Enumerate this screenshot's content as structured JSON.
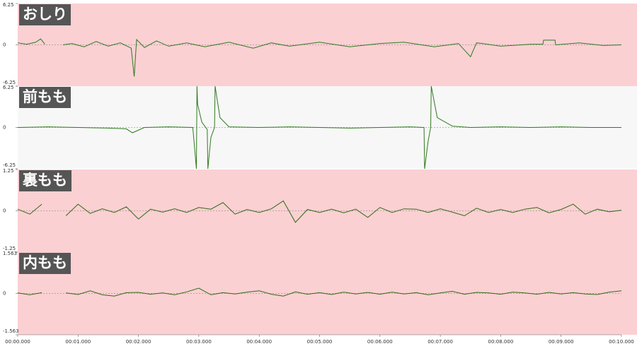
{
  "chart_data": [
    {
      "type": "line",
      "title": "おしり",
      "background": "#fbd0d3",
      "xlim": [
        0,
        10
      ],
      "ylim": [
        -6.25,
        6.25
      ],
      "yticks": [
        -6.25,
        0,
        6.25
      ],
      "x": [
        0,
        0.15,
        0.3,
        0.38,
        0.45,
        0.6,
        0.75,
        0.9,
        1.1,
        1.3,
        1.5,
        1.7,
        1.88,
        1.93,
        1.97,
        2.1,
        2.3,
        2.5,
        2.8,
        3.1,
        3.5,
        3.9,
        4.2,
        4.5,
        5.0,
        5.5,
        6.0,
        6.4,
        6.9,
        7.3,
        7.5,
        7.6,
        7.7,
        8.0,
        8.5,
        8.7,
        8.71,
        8.9,
        8.91,
        9.3,
        9.7,
        10
      ],
      "series": [
        {
          "color": "#2f7a1f",
          "values": [
            0.3,
            0.1,
            0.4,
            0.9,
            0.1,
            null,
            0,
            0.2,
            -0.3,
            0.5,
            -0.2,
            0.3,
            -0.5,
            -4.8,
            0.8,
            -0.4,
            0.6,
            -0.2,
            0.3,
            -0.3,
            0.4,
            -0.5,
            0.3,
            -0.2,
            0.4,
            -0.3,
            0.2,
            0.4,
            -0.3,
            0.2,
            -1.8,
            0.3,
            0.2,
            -0.2,
            0.1,
            0.1,
            0.7,
            0.7,
            0,
            0.3,
            -0.1,
            0
          ]
        }
      ]
    },
    {
      "type": "line",
      "title": "前もも",
      "background": "#f7f7f7",
      "xlim": [
        0,
        10
      ],
      "ylim": [
        -6.25,
        6.25
      ],
      "yticks": [
        -6.25,
        0,
        6.25
      ],
      "x": [
        0,
        0.5,
        1.0,
        1.5,
        1.8,
        1.9,
        2.1,
        2.5,
        2.9,
        2.96,
        2.97,
        2.98,
        3.05,
        3.14,
        3.15,
        3.2,
        3.26,
        3.27,
        3.35,
        3.5,
        4,
        4.5,
        5,
        5.5,
        6,
        6.5,
        6.73,
        6.74,
        6.8,
        6.84,
        6.85,
        6.95,
        7.2,
        7.5,
        8,
        8.5,
        9,
        9.5,
        10
      ],
      "series": [
        {
          "color": "#2f7a1f",
          "values": [
            0,
            0.1,
            0,
            -0.1,
            -0.2,
            -0.8,
            0,
            0.1,
            0,
            -6.25,
            6.25,
            3.5,
            0.8,
            -0.3,
            -6.25,
            -1.5,
            0,
            6.25,
            1.5,
            0.1,
            0,
            0.1,
            0,
            -0.1,
            0,
            0.1,
            0,
            -6.25,
            -2,
            0,
            6.25,
            1.5,
            0.2,
            0,
            0.1,
            0,
            0.1,
            0,
            0
          ]
        }
      ]
    },
    {
      "type": "line",
      "title": "裏もも",
      "background": "#fbd0d3",
      "xlim": [
        0,
        10
      ],
      "ylim": [
        -1.25,
        1.25
      ],
      "yticks": [
        -1.25,
        0,
        1.25
      ],
      "x": [
        0,
        0.2,
        0.4,
        0.6,
        0.8,
        1,
        1.2,
        1.4,
        1.6,
        1.8,
        2,
        2.2,
        2.4,
        2.6,
        2.8,
        3,
        3.2,
        3.4,
        3.6,
        3.8,
        4,
        4.2,
        4.4,
        4.6,
        4.8,
        5,
        5.2,
        5.4,
        5.6,
        5.8,
        6,
        6.2,
        6.4,
        6.6,
        6.8,
        7,
        7.2,
        7.4,
        7.6,
        7.8,
        8,
        8.2,
        8.4,
        8.6,
        8.8,
        9,
        9.2,
        9.4,
        9.6,
        9.8,
        10
      ],
      "series": [
        {
          "color": "#2f6a10",
          "values": [
            0.05,
            -0.1,
            0.2,
            null,
            -0.15,
            0.2,
            -0.08,
            0.06,
            -0.05,
            0.12,
            -0.25,
            0.05,
            -0.04,
            0.06,
            -0.05,
            0.1,
            0.05,
            0.25,
            -0.1,
            0.04,
            -0.05,
            0.06,
            0.3,
            -0.35,
            0.04,
            -0.05,
            0.05,
            -0.06,
            0.05,
            -0.2,
            0.1,
            -0.05,
            0.06,
            0.05,
            -0.05,
            0.06,
            -0.04,
            -0.15,
            0.08,
            -0.05,
            0.04,
            -0.05,
            0.05,
            0.1,
            -0.06,
            0.04,
            0.2,
            -0.1,
            0.05,
            -0.03,
            0.02
          ]
        }
      ]
    },
    {
      "type": "line",
      "title": "内もも",
      "background": "#fbd0d3",
      "xlim": [
        0,
        10
      ],
      "ylim": [
        -1.563,
        1.563
      ],
      "yticks": [
        -1.563,
        0,
        1.563
      ],
      "xticks": [
        {
          "value": 0,
          "label": "00:00.000"
        },
        {
          "value": 1,
          "label": "00:01.000"
        },
        {
          "value": 2,
          "label": "00:02.000"
        },
        {
          "value": 3,
          "label": "00:03.000"
        },
        {
          "value": 4,
          "label": "00:04.000"
        },
        {
          "value": 5,
          "label": "00:05.000"
        },
        {
          "value": 6,
          "label": "00:06.000"
        },
        {
          "value": 7,
          "label": "00:07.000"
        },
        {
          "value": 8,
          "label": "00:08.000"
        },
        {
          "value": 9,
          "label": "00:09.000"
        },
        {
          "value": 10,
          "label": "00:10.000"
        }
      ],
      "x": [
        0,
        0.2,
        0.4,
        0.6,
        0.8,
        1,
        1.2,
        1.4,
        1.6,
        1.8,
        2,
        2.2,
        2.4,
        2.6,
        2.8,
        3,
        3.2,
        3.4,
        3.6,
        3.8,
        4,
        4.2,
        4.4,
        4.6,
        4.8,
        5,
        5.2,
        5.4,
        5.6,
        5.8,
        6,
        6.2,
        6.4,
        6.6,
        6.8,
        7,
        7.2,
        7.4,
        7.6,
        7.8,
        8,
        8.2,
        8.4,
        8.6,
        8.8,
        9,
        9.2,
        9.4,
        9.6,
        9.8,
        10
      ],
      "series": [
        {
          "color": "#2f6a10",
          "values": [
            0.02,
            -0.05,
            0.03,
            null,
            0.02,
            -0.04,
            0.1,
            -0.05,
            -0.1,
            0.03,
            0.04,
            -0.03,
            0.02,
            -0.05,
            0.06,
            0.2,
            -0.05,
            0.03,
            -0.02,
            0.05,
            0.1,
            -0.03,
            -0.1,
            0.06,
            -0.03,
            0.03,
            -0.04,
            0.05,
            -0.02,
            0.04,
            -0.03,
            0.05,
            -0.02,
            0.03,
            -0.05,
            0.02,
            0.08,
            -0.03,
            0.04,
            0.02,
            -0.03,
            0.05,
            0.02,
            -0.03,
            0.04,
            -0.02,
            0.03,
            -0.02,
            -0.04,
            0.05,
            0.1
          ]
        }
      ]
    }
  ]
}
